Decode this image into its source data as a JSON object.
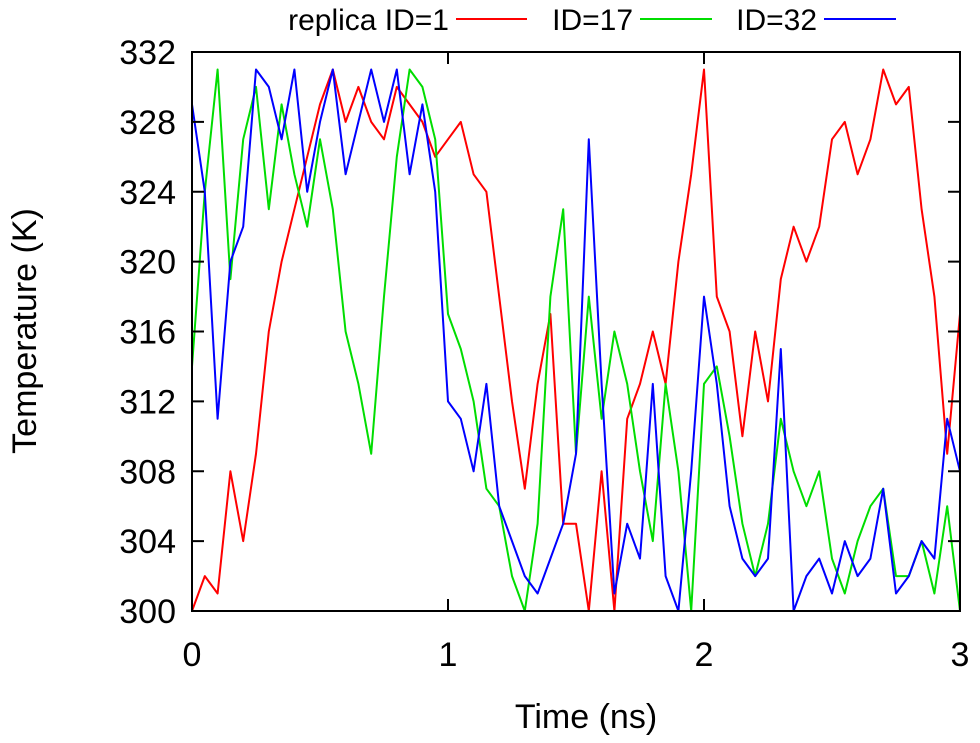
{
  "chart_data": {
    "type": "line",
    "xlabel": "Time (ns)",
    "ylabel": "Temperature (K)",
    "xlim": [
      0,
      3
    ],
    "ylim": [
      300,
      332
    ],
    "xticks": [
      0,
      1,
      2,
      3
    ],
    "xtick_labels": [
      "0",
      "1",
      "2",
      "3"
    ],
    "yticks": [
      300,
      304,
      308,
      312,
      316,
      320,
      324,
      328,
      332
    ],
    "ytick_labels": [
      "300",
      "304",
      "308",
      "312",
      "316",
      "320",
      "324",
      "328",
      "332"
    ],
    "grid": false,
    "legend_position": "top",
    "series": [
      {
        "name": "replica ID=1",
        "color": "#ff0000",
        "x": [
          0,
          0.05,
          0.1,
          0.15,
          0.2,
          0.25,
          0.3,
          0.35,
          0.4,
          0.45,
          0.5,
          0.55,
          0.6,
          0.65,
          0.7,
          0.75,
          0.8,
          0.85,
          0.9,
          0.95,
          1.0,
          1.05,
          1.1,
          1.15,
          1.2,
          1.25,
          1.3,
          1.35,
          1.4,
          1.45,
          1.5,
          1.55,
          1.6,
          1.65,
          1.7,
          1.75,
          1.8,
          1.85,
          1.9,
          1.95,
          2.0,
          2.05,
          2.1,
          2.15,
          2.2,
          2.25,
          2.3,
          2.35,
          2.4,
          2.45,
          2.5,
          2.55,
          2.6,
          2.65,
          2.7,
          2.75,
          2.8,
          2.85,
          2.9,
          2.95,
          3.0
        ],
        "values": [
          300,
          302,
          301,
          308,
          304,
          309,
          316,
          320,
          323,
          326,
          329,
          331,
          328,
          330,
          328,
          327,
          330,
          329,
          328,
          326,
          327,
          328,
          325,
          324,
          318,
          312,
          307,
          313,
          317,
          305,
          305,
          300,
          308,
          300,
          311,
          313,
          316,
          313,
          320,
          325,
          331,
          318,
          316,
          310,
          316,
          312,
          319,
          322,
          320,
          322,
          327,
          328,
          325,
          327,
          331,
          329,
          330,
          323,
          318,
          309,
          317
        ]
      },
      {
        "name": "ID=17",
        "color": "#00dd00",
        "x": [
          0,
          0.05,
          0.1,
          0.15,
          0.2,
          0.25,
          0.3,
          0.35,
          0.4,
          0.45,
          0.5,
          0.55,
          0.6,
          0.65,
          0.7,
          0.75,
          0.8,
          0.85,
          0.9,
          0.95,
          1.0,
          1.05,
          1.1,
          1.15,
          1.2,
          1.25,
          1.3,
          1.35,
          1.4,
          1.45,
          1.5,
          1.55,
          1.6,
          1.65,
          1.7,
          1.75,
          1.8,
          1.85,
          1.9,
          1.95,
          2.0,
          2.05,
          2.1,
          2.15,
          2.2,
          2.25,
          2.3,
          2.35,
          2.4,
          2.45,
          2.5,
          2.55,
          2.6,
          2.65,
          2.7,
          2.75,
          2.8,
          2.85,
          2.9,
          2.95,
          3.0
        ],
        "values": [
          314,
          324,
          331,
          319,
          327,
          330,
          323,
          329,
          325,
          322,
          327,
          323,
          316,
          313,
          309,
          318,
          326,
          331,
          330,
          327,
          317,
          315,
          312,
          307,
          306,
          302,
          300,
          305,
          318,
          323,
          309,
          318,
          311,
          316,
          313,
          308,
          304,
          313,
          308,
          300,
          313,
          314,
          310,
          305,
          302,
          305,
          311,
          308,
          306,
          308,
          303,
          301,
          304,
          306,
          307,
          302,
          302,
          304,
          301,
          306,
          300
        ]
      },
      {
        "name": "ID=32",
        "color": "#0000ff",
        "x": [
          0,
          0.05,
          0.1,
          0.15,
          0.2,
          0.25,
          0.3,
          0.35,
          0.4,
          0.45,
          0.5,
          0.55,
          0.6,
          0.65,
          0.7,
          0.75,
          0.8,
          0.85,
          0.9,
          0.95,
          1.0,
          1.05,
          1.1,
          1.15,
          1.2,
          1.25,
          1.3,
          1.35,
          1.4,
          1.45,
          1.5,
          1.55,
          1.6,
          1.65,
          1.7,
          1.75,
          1.8,
          1.85,
          1.9,
          1.95,
          2.0,
          2.05,
          2.1,
          2.15,
          2.2,
          2.25,
          2.3,
          2.35,
          2.4,
          2.45,
          2.5,
          2.55,
          2.6,
          2.65,
          2.7,
          2.75,
          2.8,
          2.85,
          2.9,
          2.95,
          3.0
        ],
        "values": [
          329,
          324,
          311,
          320,
          322,
          331,
          330,
          327,
          331,
          324,
          328,
          331,
          325,
          328,
          331,
          328,
          331,
          325,
          329,
          324,
          312,
          311,
          308,
          313,
          306,
          304,
          302,
          301,
          303,
          305,
          309,
          327,
          313,
          301,
          305,
          303,
          313,
          302,
          300,
          308,
          318,
          313,
          306,
          303,
          302,
          303,
          315,
          300,
          302,
          303,
          301,
          304,
          302,
          303,
          307,
          301,
          302,
          304,
          303,
          311,
          308
        ]
      }
    ]
  }
}
